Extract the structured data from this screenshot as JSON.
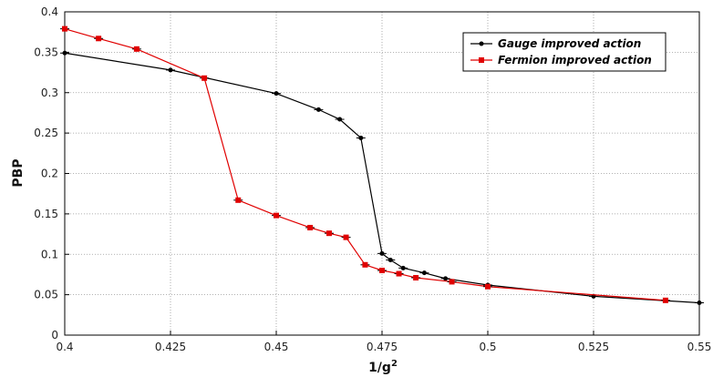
{
  "chart_data": {
    "type": "line",
    "xlabel": "1/g",
    "xlabel_sup": "2",
    "ylabel": "PBP",
    "xlim": [
      0.4,
      0.55
    ],
    "ylim": [
      0,
      0.4
    ],
    "x_ticks": [
      0.4,
      0.425,
      0.45,
      0.475,
      0.5,
      0.525,
      0.55
    ],
    "x_tick_labels": [
      "0.4",
      "0.425",
      "0.45",
      "0.475",
      "0.5",
      "0.525",
      "0.55"
    ],
    "y_ticks": [
      0,
      0.05,
      0.1,
      0.15,
      0.2,
      0.25,
      0.3,
      0.35,
      0.4
    ],
    "y_tick_labels": [
      "0",
      "0.05",
      "0.1",
      "0.15",
      "0.2",
      "0.25",
      "0.3",
      "0.35",
      "0.4"
    ],
    "grid": true,
    "legend_position": "top-right",
    "series": [
      {
        "name": "Gauge improved action",
        "color": "#000000",
        "marker": "circle",
        "x": [
          0.4,
          0.425,
          0.45,
          0.46,
          0.465,
          0.47,
          0.475,
          0.477,
          0.48,
          0.485,
          0.49,
          0.5,
          0.525,
          0.55
        ],
        "y": [
          0.349,
          0.328,
          0.299,
          0.279,
          0.267,
          0.244,
          0.101,
          0.093,
          0.083,
          0.077,
          0.07,
          0.062,
          0.048,
          0.04
        ],
        "err": [
          0.001,
          0.001,
          0.001,
          0.001,
          0.001,
          0.001,
          0.001,
          0.001,
          0.001,
          0.001,
          0.001,
          0.001,
          0.001,
          0.001
        ]
      },
      {
        "name": "Fermion improved action",
        "color": "#e00000",
        "marker": "square",
        "x": [
          0.4,
          0.408,
          0.417,
          0.433,
          0.441,
          0.45,
          0.458,
          0.4625,
          0.4665,
          0.471,
          0.475,
          0.479,
          0.483,
          0.4915,
          0.5,
          0.542
        ],
        "y": [
          0.379,
          0.367,
          0.354,
          0.318,
          0.167,
          0.148,
          0.133,
          0.126,
          0.121,
          0.087,
          0.08,
          0.076,
          0.071,
          0.066,
          0.06,
          0.043
        ],
        "err": [
          0.001,
          0.001,
          0.001,
          0.001,
          0.001,
          0.001,
          0.001,
          0.001,
          0.001,
          0.001,
          0.001,
          0.001,
          0.001,
          0.001,
          0.001,
          0.001
        ]
      }
    ]
  }
}
